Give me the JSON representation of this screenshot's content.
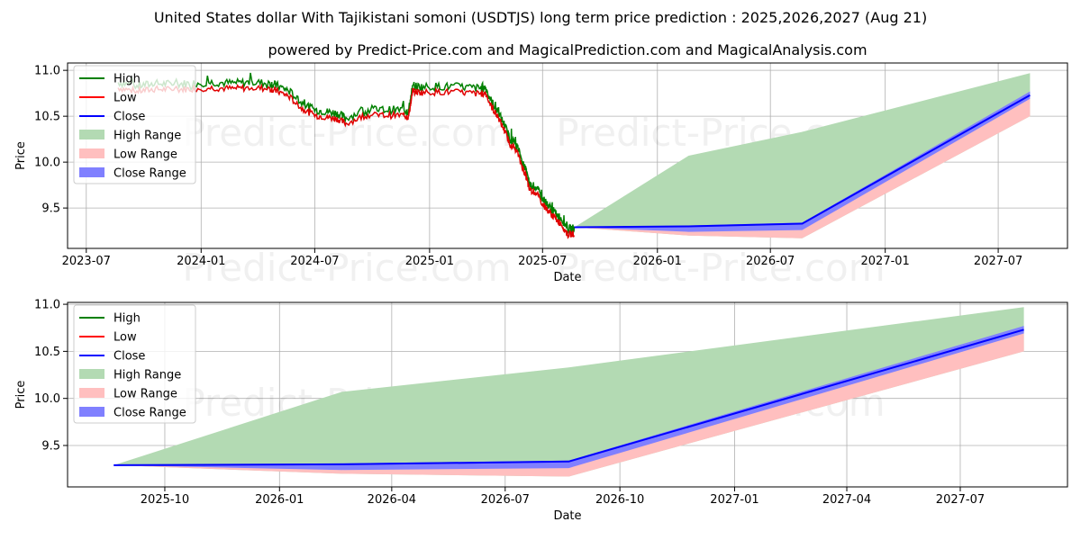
{
  "header": {
    "title": "United States dollar With Tajikistani somoni (USDTJS) long term price prediction : 2025,2026,2027 (Aug 21)",
    "subtitle": "powered by Predict-Price.com and MagicalPrediction.com and MagicalAnalysis.com"
  },
  "watermark": "Predict-Price.com",
  "legend": {
    "high": "High",
    "low": "Low",
    "close": "Close",
    "high_range": "High Range",
    "low_range": "Low Range",
    "close_range": "Close Range"
  },
  "colors": {
    "high": "#008000",
    "low": "#ff0000",
    "close": "#0000ff",
    "high_range": "#b3dab3",
    "low_range": "#ffbfbf",
    "close_range": "#8080ff"
  },
  "chart_data": [
    {
      "type": "line",
      "panel": "top",
      "xlabel": "Date",
      "ylabel": "Price",
      "xlim": [
        "2023-06-01",
        "2027-10-20"
      ],
      "ylim": [
        9.06,
        11.08
      ],
      "x_ticks": [
        {
          "date": "2023-07-01",
          "label": "2023-07"
        },
        {
          "date": "2024-01-01",
          "label": "2024-01"
        },
        {
          "date": "2024-07-01",
          "label": "2024-07"
        },
        {
          "date": "2025-01-01",
          "label": "2025-01"
        },
        {
          "date": "2025-07-01",
          "label": "2025-07"
        },
        {
          "date": "2026-01-01",
          "label": "2026-01"
        },
        {
          "date": "2026-07-01",
          "label": "2026-07"
        },
        {
          "date": "2027-01-01",
          "label": "2027-01"
        },
        {
          "date": "2027-07-01",
          "label": "2027-07"
        }
      ],
      "y_ticks": [
        {
          "value": 9.5,
          "label": "9.5"
        },
        {
          "value": 10.0,
          "label": "10.0"
        },
        {
          "value": 10.5,
          "label": "10.5"
        },
        {
          "value": 11.0,
          "label": "11.0"
        }
      ],
      "grid": true,
      "legend_position": "upper-left",
      "history": {
        "dates": [
          "2023-08-21",
          "2023-09-20",
          "2023-10-20",
          "2023-11-20",
          "2023-12-20",
          "2024-01-20",
          "2024-02-20",
          "2024-03-20",
          "2024-04-20",
          "2024-05-01",
          "2024-05-20",
          "2024-06-10",
          "2024-07-01",
          "2024-07-20",
          "2024-08-05",
          "2024-08-20",
          "2024-09-20",
          "2024-10-20",
          "2024-11-20",
          "2024-11-28",
          "2024-12-05",
          "2024-12-20",
          "2025-01-20",
          "2025-02-20",
          "2025-03-20",
          "2025-04-01",
          "2025-04-10",
          "2025-04-20",
          "2025-05-01",
          "2025-05-10",
          "2025-05-20",
          "2025-05-31",
          "2025-06-05",
          "2025-06-10",
          "2025-06-20",
          "2025-07-01",
          "2025-07-10",
          "2025-07-20",
          "2025-08-01",
          "2025-08-10",
          "2025-08-21"
        ],
        "high": [
          10.9,
          10.85,
          10.88,
          10.86,
          10.87,
          10.88,
          10.87,
          10.88,
          10.87,
          10.85,
          10.8,
          10.68,
          10.58,
          10.56,
          10.55,
          10.5,
          10.58,
          10.58,
          10.58,
          10.56,
          10.86,
          10.84,
          10.85,
          10.84,
          10.83,
          10.84,
          10.72,
          10.6,
          10.45,
          10.3,
          10.25,
          10.05,
          9.95,
          9.8,
          9.78,
          9.65,
          9.58,
          9.5,
          9.45,
          9.3,
          9.3
        ],
        "low": [
          10.78,
          10.75,
          10.77,
          10.78,
          10.79,
          10.8,
          10.79,
          10.8,
          10.79,
          10.76,
          10.7,
          10.55,
          10.5,
          10.48,
          10.46,
          10.4,
          10.5,
          10.5,
          10.5,
          10.48,
          10.74,
          10.74,
          10.74,
          10.74,
          10.72,
          10.72,
          10.55,
          10.45,
          10.3,
          10.15,
          10.08,
          9.85,
          9.78,
          9.65,
          9.62,
          9.5,
          9.42,
          9.35,
          9.25,
          9.18,
          9.2
        ]
      },
      "forecast": {
        "dates": [
          "2025-08-21",
          "2026-02-20",
          "2026-08-21",
          "2027-08-21"
        ],
        "high": [
          9.29,
          10.07,
          10.33,
          10.97
        ],
        "high_range_low": [
          9.29,
          9.2,
          9.17,
          10.5
        ],
        "low": [
          9.29,
          9.2,
          9.17,
          10.5
        ],
        "close": [
          9.29,
          9.3,
          9.33,
          10.73
        ],
        "close_upper": [
          9.29,
          9.31,
          9.34,
          10.77
        ],
        "close_lower": [
          9.29,
          9.24,
          9.26,
          10.69
        ]
      }
    },
    {
      "type": "line",
      "panel": "bottom",
      "xlabel": "Date",
      "ylabel": "Price",
      "xlim": [
        "2025-07-15",
        "2027-09-25"
      ],
      "ylim": [
        9.06,
        11.02
      ],
      "x_ticks": [
        {
          "date": "2025-10-01",
          "label": "2025-10"
        },
        {
          "date": "2026-01-01",
          "label": "2026-01"
        },
        {
          "date": "2026-04-01",
          "label": "2026-04"
        },
        {
          "date": "2026-07-01",
          "label": "2026-07"
        },
        {
          "date": "2026-10-01",
          "label": "2026-10"
        },
        {
          "date": "2027-01-01",
          "label": "2027-01"
        },
        {
          "date": "2027-04-01",
          "label": "2027-04"
        },
        {
          "date": "2027-07-01",
          "label": "2027-07"
        }
      ],
      "y_ticks": [
        {
          "value": 9.5,
          "label": "9.5"
        },
        {
          "value": 10.0,
          "label": "10.0"
        },
        {
          "value": 10.5,
          "label": "10.5"
        },
        {
          "value": 11.0,
          "label": "11.0"
        }
      ],
      "grid": true,
      "legend_position": "upper-left",
      "forecast": {
        "dates": [
          "2025-08-21",
          "2026-02-20",
          "2026-08-21",
          "2027-08-21"
        ],
        "high": [
          9.29,
          10.07,
          10.33,
          10.97
        ],
        "low": [
          9.29,
          9.2,
          9.17,
          10.5
        ],
        "close": [
          9.29,
          9.3,
          9.33,
          10.73
        ],
        "close_upper": [
          9.29,
          9.31,
          9.34,
          10.77
        ],
        "close_lower": [
          9.29,
          9.24,
          9.26,
          10.69
        ]
      }
    }
  ]
}
